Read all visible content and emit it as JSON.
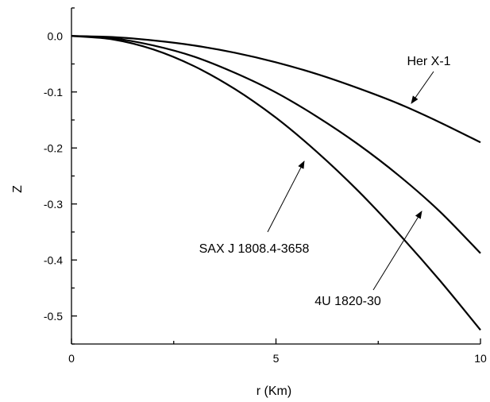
{
  "chart_data": {
    "type": "line",
    "xlabel": "r (Km)",
    "ylabel": "Z",
    "xlim": [
      0,
      10
    ],
    "ylim": [
      -0.55,
      0.05
    ],
    "xticks": [
      0,
      5,
      10
    ],
    "xtick_labels": [
      "0",
      "5",
      "10"
    ],
    "yticks": [
      0.0,
      -0.1,
      -0.2,
      -0.3,
      -0.4,
      -0.5
    ],
    "ytick_labels": [
      "0.0",
      "-0.1",
      "-0.2",
      "-0.3",
      "-0.4",
      "-0.5"
    ],
    "grid": false,
    "legend": "none",
    "line_color": "#000000",
    "series": [
      {
        "name": "Her X-1",
        "x": [
          0,
          1,
          2,
          3,
          4,
          5,
          6,
          7,
          8,
          9,
          10
        ],
        "y": [
          0.0,
          -0.002,
          -0.008,
          -0.017,
          -0.03,
          -0.047,
          -0.068,
          -0.093,
          -0.121,
          -0.154,
          -0.19
        ]
      },
      {
        "name": "4U 1820-30",
        "x": [
          0,
          1,
          2,
          3,
          4,
          5,
          6,
          7,
          8,
          9,
          10
        ],
        "y": [
          0.0,
          -0.004,
          -0.017,
          -0.037,
          -0.066,
          -0.101,
          -0.144,
          -0.193,
          -0.249,
          -0.313,
          -0.388
        ]
      },
      {
        "name": "SAX J 1808.4-3658",
        "x": [
          0,
          1,
          2,
          3,
          4,
          5,
          6,
          7,
          8,
          9,
          10
        ],
        "y": [
          0.0,
          -0.006,
          -0.024,
          -0.054,
          -0.095,
          -0.146,
          -0.207,
          -0.276,
          -0.353,
          -0.436,
          -0.525
        ]
      }
    ],
    "annotations": [
      {
        "text": "Her X-1",
        "series": 0,
        "point_x": 8.25
      },
      {
        "text": "4U 1820-30",
        "series": 1,
        "point_x": 8.45
      },
      {
        "text": "SAX J 1808.4-3658",
        "series": 2,
        "point_x": 5.6
      }
    ]
  }
}
